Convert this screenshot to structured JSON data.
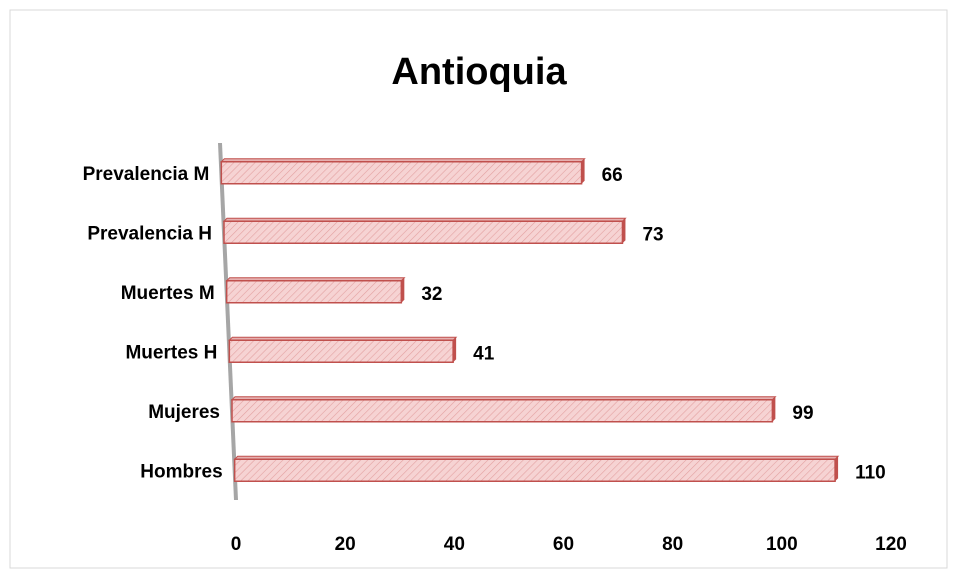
{
  "chart_data": {
    "type": "bar",
    "orientation": "horizontal",
    "title": "Antioquia",
    "categories": [
      "Hombres",
      "Mujeres",
      "Muertes H",
      "Muertes M",
      "Prevalencia H",
      "Prevalencia M"
    ],
    "values": [
      110,
      99,
      41,
      32,
      73,
      66
    ],
    "color": "#c0504d",
    "xlim": [
      0,
      120
    ],
    "xticks": [
      0,
      20,
      40,
      60,
      80,
      100,
      120
    ],
    "grid": false
  }
}
